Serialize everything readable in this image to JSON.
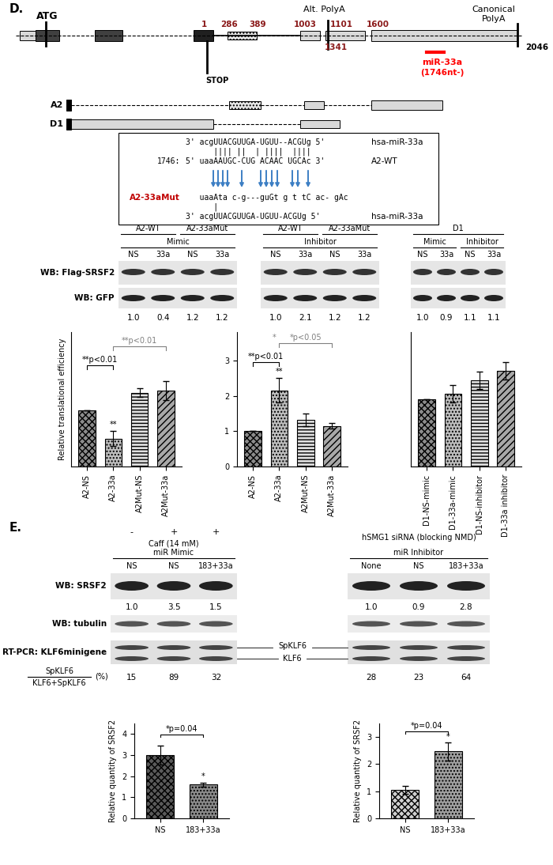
{
  "panel_labels": [
    "D.",
    "E."
  ],
  "gene_diagram": {
    "start": "ATG",
    "stop": "STOP",
    "alt_polya": "Alt. PolyA",
    "canonical_polya": "Canonical\nPolyA",
    "positions_top": [
      1,
      286,
      389,
      1003,
      1101,
      1600
    ],
    "positions_bottom": [
      1341,
      2046
    ],
    "mirna": "miR-33a",
    "mirna_site": "(1746nt-)",
    "isoforms": [
      "A2",
      "D1"
    ]
  },
  "alignment": {
    "rows": [
      {
        "seq": "3' acgUUACGUUGA-UGUU--ACGUg 5'",
        "name": "hsa-miR-33a"
      },
      {
        "seq": "      |||| ||  | ||||  ||||"
      },
      {
        "seq": "5' uaaAAUGC-CUG ACAAC UGCAc 3'",
        "prefix": "1746:",
        "name": "A2-WT"
      },
      {
        "seq": "   uaaAta c-g---guGt g t tC ac- gAc",
        "prefix": "A2-33aMut"
      },
      {
        "seq": "      |"
      },
      {
        "seq": "3' acgUUACGUUGA-UGUU-ACGUg 5'",
        "name": "hsa-miR-33a"
      }
    ]
  },
  "blots_D": {
    "row_labels": [
      "WB: Flag-SRSF2",
      "WB: GFP"
    ],
    "panels": [
      {
        "groups": [
          "A2-WT",
          "A2-33aMut"
        ],
        "treatments": [
          "Mimic"
        ],
        "lanes": [
          "NS",
          "33a",
          "NS",
          "33a"
        ],
        "values": [
          1.0,
          0.4,
          1.2,
          1.2
        ]
      },
      {
        "groups": [
          "A2-WT",
          "A2-33aMut"
        ],
        "treatments": [
          "Inhibitor"
        ],
        "lanes": [
          "NS",
          "33a",
          "NS",
          "33a"
        ],
        "values": [
          1.0,
          2.1,
          1.2,
          1.2
        ]
      },
      {
        "groups": [
          "D1"
        ],
        "treatments": [
          "Mimic",
          "Inhibitor"
        ],
        "lanes": [
          "NS",
          "33a",
          "NS",
          "33a"
        ],
        "values": [
          1.0,
          0.9,
          1.1,
          1.1
        ]
      }
    ]
  },
  "blots_E": {
    "row_labels": [
      "WB: SRSF2",
      "WB: tubulin",
      "RT-PCR: KLF6minigene"
    ],
    "bands": [
      "SpKLF6",
      "KLF6"
    ],
    "ratio": {
      "numerator": "SpKLF6",
      "denominator": "KLF6+SpKLF6",
      "unit": "(%)"
    },
    "panels": [
      {
        "condition": "Caff (14 mM)",
        "condition_marks": [
          "-",
          "+",
          "+"
        ],
        "treatment": "miR Mimic",
        "lanes": [
          "NS",
          "NS",
          "183+33a"
        ],
        "srsf2": [
          1.0,
          3.5,
          1.5
        ],
        "percent": [
          15,
          89,
          32
        ]
      },
      {
        "condition": "hSMG1 siRNA (blocking NMD)",
        "treatment": "miR Inhibitor",
        "lanes": [
          "None",
          "NS",
          "183+33a"
        ],
        "srsf2": [
          1.0,
          0.9,
          2.8
        ],
        "percent": [
          28,
          23,
          64
        ]
      }
    ]
  },
  "chart_data": [
    {
      "type": "bar",
      "categories": [
        "A2-NS",
        "A2-33a",
        "A2Mut-NS",
        "A2Mut-33a"
      ],
      "values": [
        1.0,
        0.5,
        1.32,
        1.35
      ],
      "errors": [
        0,
        0.13,
        0.08,
        0.17
      ],
      "colors": [
        "#8c8c8c",
        "#bdbdbd",
        "#e0e0e0",
        "#a8a8a8"
      ],
      "ylim": [
        0,
        2.4
      ],
      "ylabel": "Relative translational efficiency",
      "tick_labels": "x",
      "annotations": [
        {
          "text": "**p<0.01",
          "between": [
            0,
            1
          ]
        },
        {
          "text": "**",
          "above": 1
        },
        {
          "text": "**p<0.01",
          "between": [
            1,
            3
          ],
          "color": "#808080"
        }
      ]
    },
    {
      "type": "bar",
      "categories": [
        "A2-NS",
        "A2-33a",
        "A2Mut-NS",
        "A2Mut-33a"
      ],
      "values": [
        1.0,
        2.15,
        1.32,
        1.15
      ],
      "errors": [
        0,
        0.35,
        0.17,
        0.08
      ],
      "colors": [
        "#8c8c8c",
        "#bdbdbd",
        "#e0e0e0",
        "#a8a8a8"
      ],
      "ylim": [
        0,
        3.8
      ],
      "yticks": [
        0,
        1,
        2,
        3
      ],
      "annotations": [
        {
          "text": "**p<0.01",
          "between": [
            0,
            1
          ]
        },
        {
          "text": "**",
          "above": 1
        },
        {
          "text": "*p<0.05",
          "between": [
            1,
            3
          ],
          "color": "#808080",
          "mark": "*"
        }
      ]
    },
    {
      "type": "bar",
      "categories": [
        "D1-NS-mimic",
        "D1-33a-mimic",
        "D1-NS-inhibitor",
        "D1-33a inhibitor"
      ],
      "values": [
        1.0,
        1.08,
        1.28,
        1.42
      ],
      "errors": [
        0,
        0.13,
        0.13,
        0.13
      ],
      "colors": [
        "#8c8c8c",
        "#bdbdbd",
        "#e0e0e0",
        "#a8a8a8"
      ],
      "ylim": [
        0,
        2.0
      ],
      "tick_labels": "x",
      "annotations": []
    },
    {
      "type": "bar",
      "categories": [
        "NS",
        "183+33a"
      ],
      "values": [
        3.0,
        1.6
      ],
      "errors": [
        0.45,
        0.1
      ],
      "colors": [
        "#5a5a5a",
        "#8a8a8a"
      ],
      "ylim": [
        0,
        4.5
      ],
      "yticks": [
        0,
        1,
        2,
        3,
        4
      ],
      "ylabel": "Relative quantity of SRSF2",
      "annotations": [
        {
          "text": "*p=0.04",
          "between": [
            0,
            1
          ]
        },
        {
          "text": "*",
          "above": 1
        }
      ]
    },
    {
      "type": "bar",
      "categories": [
        "NS",
        "183+33a"
      ],
      "values": [
        1.05,
        2.47
      ],
      "errors": [
        0.15,
        0.33
      ],
      "colors": [
        "#d0d0d0",
        "#a0a0a0"
      ],
      "ylim": [
        0,
        3.5
      ],
      "yticks": [
        0,
        1,
        2,
        3
      ],
      "ylabel": "Relative quantity of SRSF2",
      "annotations": [
        {
          "text": "*p=0.04",
          "between": [
            0,
            1
          ]
        },
        {
          "text": "*",
          "above": 1
        }
      ]
    }
  ]
}
